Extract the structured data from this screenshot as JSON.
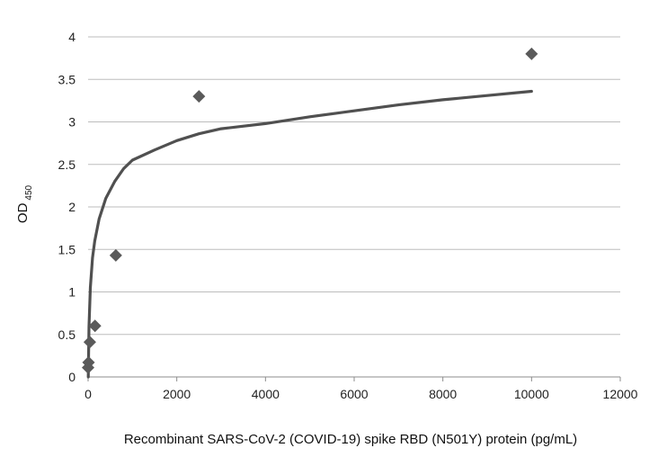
{
  "chart_data": {
    "type": "scatter",
    "xlabel": "Recombinant SARS-CoV-2 (COVID-19) spike RBD (N501Y) protein (pg/mL)",
    "ylabel_main": "OD",
    "ylabel_sub": "450",
    "xlim": [
      0,
      12000
    ],
    "ylim": [
      0,
      4
    ],
    "x_ticks": [
      "0",
      "2000",
      "4000",
      "6000",
      "8000",
      "10000",
      "12000"
    ],
    "y_ticks": [
      "0",
      "0.5",
      "1",
      "1.5",
      "2",
      "2.5",
      "3",
      "3.5",
      "4"
    ],
    "grid": "horizontal",
    "legend": "none",
    "marker": "diamond",
    "marker_color": "#5a5a5a",
    "curve_color": "#505050",
    "points": [
      {
        "x": 0,
        "y": 0.11
      },
      {
        "x": 10,
        "y": 0.17
      },
      {
        "x": 39,
        "y": 0.41
      },
      {
        "x": 156,
        "y": 0.6
      },
      {
        "x": 625,
        "y": 1.43
      },
      {
        "x": 2500,
        "y": 3.3
      },
      {
        "x": 10000,
        "y": 3.8
      }
    ],
    "trendline": {
      "type": "log-fit",
      "x": [
        5,
        20,
        50,
        100,
        150,
        250,
        400,
        600,
        800,
        1000,
        1500,
        2000,
        2500,
        3000,
        4000,
        5000,
        6000,
        7000,
        8000,
        9000,
        10000
      ],
      "y": [
        0.0,
        0.59,
        1.05,
        1.4,
        1.6,
        1.86,
        2.1,
        2.3,
        2.45,
        2.55,
        2.67,
        2.78,
        2.86,
        2.92,
        2.98,
        3.06,
        3.13,
        3.2,
        3.26,
        3.31,
        3.36
      ]
    }
  }
}
